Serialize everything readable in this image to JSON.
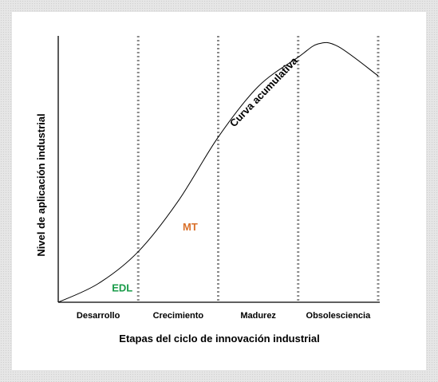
{
  "chart_data": {
    "type": "line",
    "xlabel": "Etapas del ciclo de innovación industrial",
    "ylabel": "Nivel de aplicación industrial",
    "categories": [
      "Desarrollo",
      "Crecimiento",
      "Madurez",
      "Obsolesciencia"
    ],
    "grid": "vertical dotted separators between stages",
    "series": [
      {
        "name": "Curva acumulativa",
        "color": "#000000",
        "x": [
          0,
          0.5,
          1.0,
          1.5,
          2.0,
          2.5,
          3.0,
          3.25,
          3.5,
          4.0
        ],
        "y": [
          0,
          0.07,
          0.19,
          0.38,
          0.62,
          0.81,
          0.92,
          0.97,
          0.96,
          0.85
        ]
      }
    ],
    "annotations": [
      {
        "text": "EDL",
        "x": 0.8,
        "y": 0.04,
        "color": "#1a9c4a"
      },
      {
        "text": "MT",
        "x": 1.65,
        "y": 0.27,
        "color": "#d9702a"
      },
      {
        "text": "Curva acumulativa",
        "x": 2.6,
        "y": 0.78,
        "color": "#000000"
      }
    ]
  }
}
